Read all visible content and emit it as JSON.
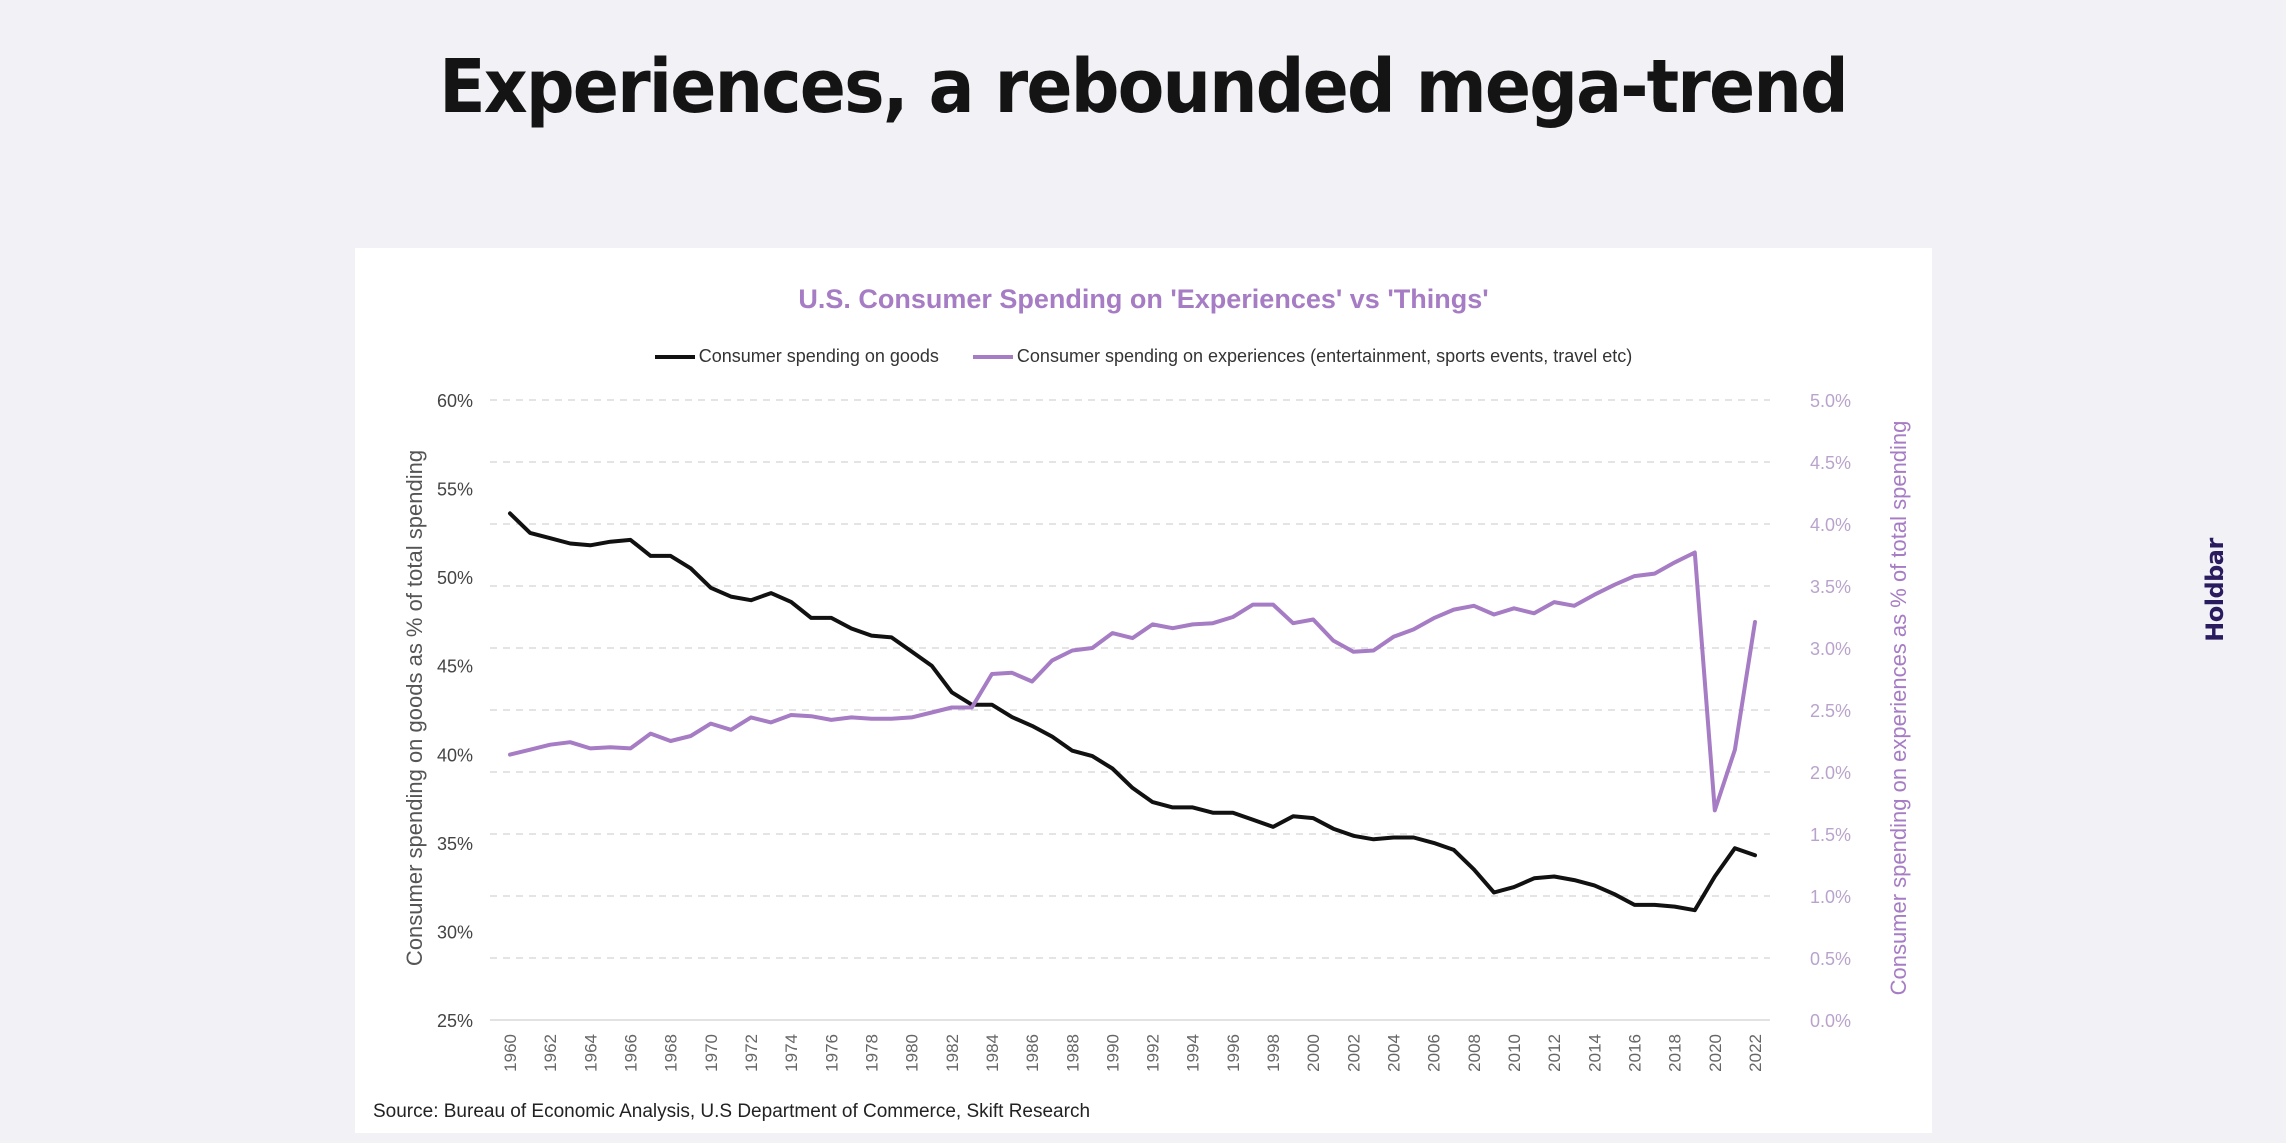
{
  "page": {
    "title": "Experiences, a rebounded mega-trend",
    "logo_text": "Holdbar",
    "colors": {
      "background": "#f2f1f6",
      "card": "#ffffff",
      "logo": "#2a1a5e",
      "logo_accent": "#e03a2a"
    }
  },
  "chart_data": {
    "type": "line",
    "title": "U.S. Consumer Spending on 'Experiences' vs 'Things'",
    "xlabel": "",
    "ylabel": "Consumer spending on goods as % of total spending",
    "ylabel_right": "Consumer spending on experiences as % of total spending",
    "ylim": [
      25,
      60
    ],
    "ylim_right": [
      0,
      5
    ],
    "yticks": [
      "25%",
      "30%",
      "35%",
      "40%",
      "45%",
      "50%",
      "55%",
      "60%"
    ],
    "yticks_right": [
      "0.0%",
      "0.5%",
      "1.0%",
      "1.5%",
      "2.0%",
      "2.5%",
      "3.0%",
      "3.5%",
      "4.0%",
      "4.5%",
      "5.0%"
    ],
    "xticks": [
      "1960",
      "1962",
      "1964",
      "1966",
      "1968",
      "1970",
      "1972",
      "1974",
      "1976",
      "1978",
      "1980",
      "1982",
      "1984",
      "1986",
      "1988",
      "1990",
      "1992",
      "1994",
      "1996",
      "1998",
      "2000",
      "2002",
      "2004",
      "2006",
      "2008",
      "2010",
      "2012",
      "2014",
      "2016",
      "2018",
      "2020",
      "2022"
    ],
    "grid": true,
    "legend_position": "top-center",
    "x": [
      1960,
      1961,
      1962,
      1963,
      1964,
      1965,
      1966,
      1967,
      1968,
      1969,
      1970,
      1971,
      1972,
      1973,
      1974,
      1975,
      1976,
      1977,
      1978,
      1979,
      1980,
      1981,
      1982,
      1983,
      1984,
      1985,
      1986,
      1987,
      1988,
      1989,
      1990,
      1991,
      1992,
      1993,
      1994,
      1995,
      1996,
      1997,
      1998,
      1999,
      2000,
      2001,
      2002,
      2003,
      2004,
      2005,
      2006,
      2007,
      2008,
      2009,
      2010,
      2011,
      2012,
      2013,
      2014,
      2015,
      2016,
      2017,
      2018,
      2019,
      2020,
      2021,
      2022
    ],
    "series": [
      {
        "name": "Consumer spending on goods",
        "axis": "left",
        "color": "#111111",
        "values": [
          53.6,
          52.5,
          52.2,
          51.9,
          51.8,
          52.0,
          52.1,
          51.2,
          51.2,
          50.5,
          49.4,
          48.9,
          48.7,
          49.1,
          48.6,
          47.7,
          47.7,
          47.1,
          46.7,
          46.6,
          45.8,
          45.0,
          43.5,
          42.8,
          42.8,
          42.1,
          41.6,
          41.0,
          40.2,
          39.9,
          39.2,
          38.1,
          37.3,
          37.0,
          37.0,
          36.7,
          36.7,
          36.3,
          35.9,
          36.5,
          36.4,
          35.8,
          35.4,
          35.2,
          35.3,
          35.3,
          35.0,
          34.6,
          33.5,
          32.2,
          32.5,
          33.0,
          33.1,
          32.9,
          32.6,
          32.1,
          31.5,
          31.5,
          31.4,
          31.2,
          33.1,
          34.7,
          34.3
        ]
      },
      {
        "name": "Consumer spending on experiences (entertainment, sports events, travel etc)",
        "axis": "right",
        "color": "#a67cc4",
        "values": [
          2.14,
          2.18,
          2.22,
          2.24,
          2.19,
          2.2,
          2.19,
          2.31,
          2.25,
          2.29,
          2.39,
          2.34,
          2.44,
          2.4,
          2.46,
          2.45,
          2.42,
          2.44,
          2.43,
          2.43,
          2.44,
          2.48,
          2.52,
          2.52,
          2.79,
          2.8,
          2.73,
          2.9,
          2.98,
          3.0,
          3.12,
          3.08,
          3.19,
          3.16,
          3.19,
          3.2,
          3.25,
          3.35,
          3.35,
          3.2,
          3.23,
          3.06,
          2.97,
          2.98,
          3.09,
          3.15,
          3.24,
          3.31,
          3.34,
          3.27,
          3.32,
          3.28,
          3.37,
          3.34,
          3.43,
          3.51,
          3.58,
          3.6,
          3.69,
          3.77,
          1.69,
          2.18,
          3.21
        ]
      }
    ],
    "source": "Source: Bureau of Economic Analysis, U.S Department of Commerce, Skift Research"
  }
}
